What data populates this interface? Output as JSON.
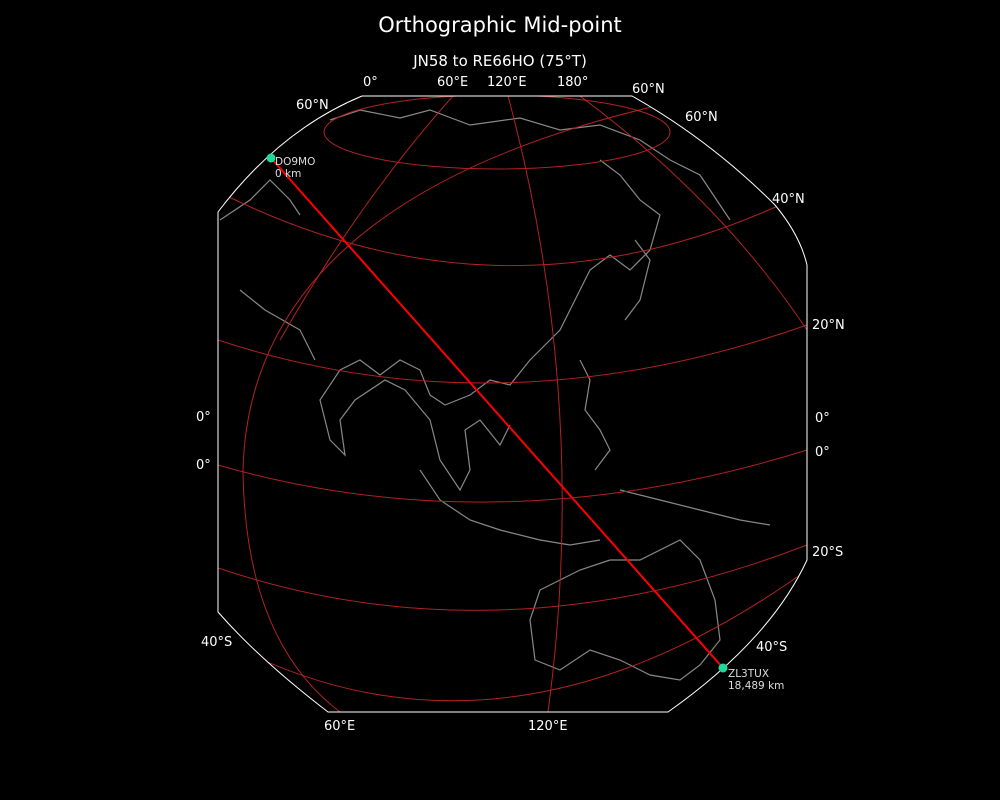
{
  "title": "Orthographic Mid-point",
  "subtitle": "JN58 to RE66HO (75°T)",
  "colors": {
    "background": "#000000",
    "path": "#ff0000",
    "graticule": "#b22222",
    "coastline": "#888888",
    "marker": "#1fd8a0",
    "border": "#ffffff"
  },
  "grid_labels": {
    "top": [
      "0°",
      "60°E",
      "120°E",
      "180°",
      "60°N"
    ],
    "left": [
      "60°N",
      "0°",
      "0°",
      "40°S"
    ],
    "right": [
      "60°N",
      "40°N",
      "20°N",
      "0°",
      "0°",
      "20°S",
      "40°S"
    ],
    "bottom": [
      "60°E",
      "120°E"
    ]
  },
  "start": {
    "call": "DO9MO",
    "distance": "0 km"
  },
  "end": {
    "call": "ZL3TUX",
    "distance": "18,489 km"
  }
}
